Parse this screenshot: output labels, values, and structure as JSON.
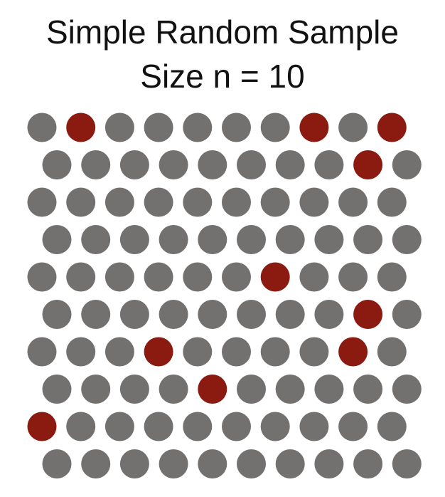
{
  "title": {
    "line1": "Simple Random Sample",
    "line2": "Size n = 10"
  },
  "population": {
    "rows": 10,
    "cols": 10,
    "unselected_color": "#737070",
    "selected_color": "#8b1a10",
    "selected": [
      [
        0,
        1
      ],
      [
        0,
        7
      ],
      [
        0,
        9
      ],
      [
        1,
        8
      ],
      [
        4,
        6
      ],
      [
        5,
        8
      ],
      [
        6,
        3
      ],
      [
        6,
        8
      ],
      [
        7,
        4
      ],
      [
        8,
        0
      ]
    ]
  }
}
